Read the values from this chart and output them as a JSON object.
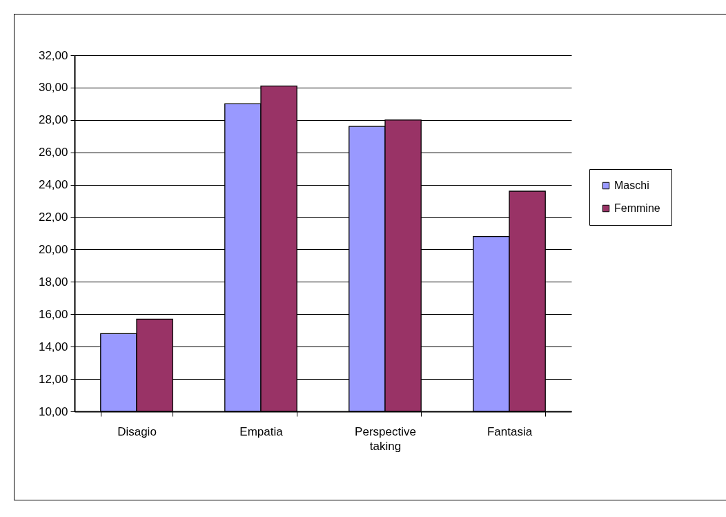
{
  "chart_data": {
    "type": "bar",
    "categories": [
      "Disagio",
      "Empatia",
      "Perspective taking",
      "Fantasia"
    ],
    "series": [
      {
        "name": "Maschi",
        "color": "#9999ff",
        "values": [
          14.8,
          29.0,
          27.6,
          20.8
        ]
      },
      {
        "name": "Femmine",
        "color": "#993366",
        "values": [
          15.7,
          30.1,
          28.0,
          23.6
        ]
      }
    ],
    "ylim": [
      10,
      32
    ],
    "yticks": [
      {
        "value": 10,
        "label": "10,00"
      },
      {
        "value": 12,
        "label": "12,00"
      },
      {
        "value": 14,
        "label": "14,00"
      },
      {
        "value": 16,
        "label": "16,00"
      },
      {
        "value": 18,
        "label": "18,00"
      },
      {
        "value": 20,
        "label": "20,00"
      },
      {
        "value": 22,
        "label": "22,00"
      },
      {
        "value": 24,
        "label": "24,00"
      },
      {
        "value": 26,
        "label": "26,00"
      },
      {
        "value": 28,
        "label": "28,00"
      },
      {
        "value": 30,
        "label": "30,00"
      },
      {
        "value": 32,
        "label": "32,00"
      }
    ],
    "grid": "y",
    "legend": "right"
  }
}
